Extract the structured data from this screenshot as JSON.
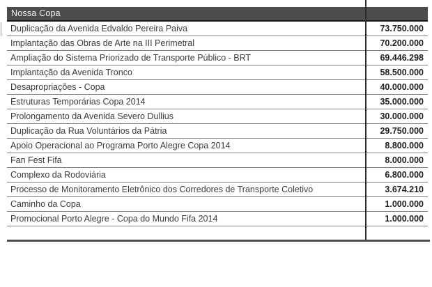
{
  "table": {
    "header": "Nossa Copa",
    "rows": [
      {
        "name": "Duplicação da Avenida Edvaldo Pereira Paiva",
        "value": "73.750.000"
      },
      {
        "name": "Implantação das Obras de Arte na III Perimetral",
        "value": "70.200.000"
      },
      {
        "name": "Ampliação do Sistema Priorizado de Transporte Público - BRT",
        "value": "69.446.298"
      },
      {
        "name": "Implantação da Avenida Tronco",
        "value": "58.500.000"
      },
      {
        "name": "Desapropriações - Copa",
        "value": "40.000.000"
      },
      {
        "name": "Estruturas Temporárias Copa 2014",
        "value": "35.000.000"
      },
      {
        "name": "Prolongamento da Avenida Severo Dullius",
        "value": "30.000.000"
      },
      {
        "name": "Duplicação da Rua Voluntários da Pátria",
        "value": "29.750.000"
      },
      {
        "name": "Apoio Operacional ao Programa Porto Alegre Copa 2014",
        "value": "8.800.000"
      },
      {
        "name": "Fan Fest Fifa",
        "value": "8.000.000"
      },
      {
        "name": "Complexo da Rodoviária",
        "value": "6.800.000"
      },
      {
        "name": "Processo de Monitoramento Eletrônico dos Corredores de Transporte Coletivo",
        "value": "3.674.210"
      },
      {
        "name": "Caminho da Copa",
        "value": "1.000.000"
      },
      {
        "name": "Promocional Porto Alegre - Copa do Mundo Fifa 2014",
        "value": "1.000.000"
      }
    ],
    "colors": {
      "header_bg": "#4d4d4d",
      "header_text": "#f2f2f2",
      "row_text": "#3b3b3b",
      "value_text": "#1f1f1f",
      "row_border": "#7d7d7d",
      "divider": "#2e2e2e",
      "bottom_rule": "#4d4d4d"
    }
  }
}
